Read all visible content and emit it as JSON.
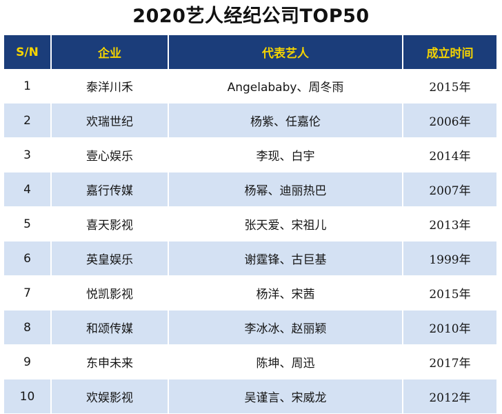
{
  "title": "2020艺人经纪公司TOP50",
  "colors": {
    "header_bg": "#1b3d7a",
    "header_text": "#f5d400",
    "row_alt": "#d4e1f3",
    "row_plain": "#ffffff"
  },
  "table": {
    "headers": [
      "S/N",
      "企业",
      "代表艺人",
      "成立时间"
    ],
    "rows": [
      {
        "sn": "1",
        "company": "泰洋川禾",
        "artists": "Angelababy、周冬雨",
        "year": "2015年"
      },
      {
        "sn": "2",
        "company": "欢瑞世纪",
        "artists": "杨紫、任嘉伦",
        "year": "2006年"
      },
      {
        "sn": "3",
        "company": "壹心娱乐",
        "artists": "李现、白宇",
        "year": "2014年"
      },
      {
        "sn": "4",
        "company": "嘉行传媒",
        "artists": "杨幂、迪丽热巴",
        "year": "2007年"
      },
      {
        "sn": "5",
        "company": "喜天影视",
        "artists": "张天爱、宋祖儿",
        "year": "2013年"
      },
      {
        "sn": "6",
        "company": "英皇娱乐",
        "artists": "谢霆锋、古巨基",
        "year": "1999年"
      },
      {
        "sn": "7",
        "company": "悦凯影视",
        "artists": "杨洋、宋茜",
        "year": "2015年"
      },
      {
        "sn": "8",
        "company": "和颂传媒",
        "artists": "李冰冰、赵丽颖",
        "year": "2010年"
      },
      {
        "sn": "9",
        "company": "东申未来",
        "artists": "陈坤、周迅",
        "year": "2017年"
      },
      {
        "sn": "10",
        "company": "欢娱影视",
        "artists": "吴谨言、宋威龙",
        "year": "2012年"
      }
    ]
  }
}
